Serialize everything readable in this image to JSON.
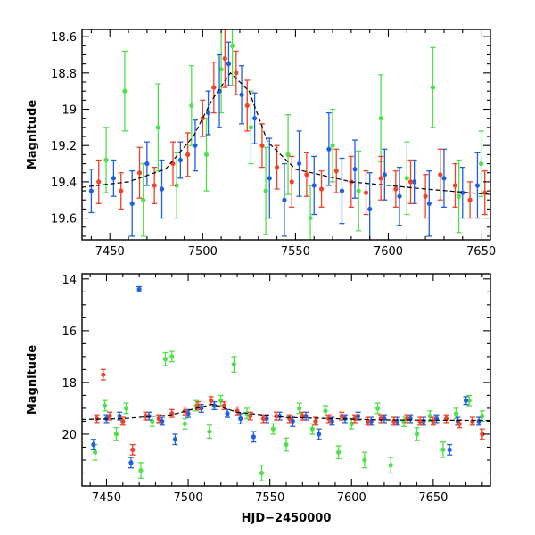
{
  "chart_data": [
    {
      "type": "scatter",
      "title": "",
      "xlabel": "",
      "ylabel": "Magnitude",
      "xlim": [
        7435,
        7655
      ],
      "ylim": [
        19.72,
        18.56
      ],
      "y_inverted": true,
      "xticks": [
        7450,
        7500,
        7550,
        7600,
        7650
      ],
      "yticks": [
        18.6,
        18.8,
        19,
        19.2,
        19.4,
        19.6
      ],
      "yticks_labels": [
        "18.6",
        "18.8",
        "19",
        "19.2",
        "19.4",
        "19.6"
      ],
      "grid": false,
      "legend": "none",
      "colors": {
        "blue": "#1f5fe0",
        "red": "#f0422a",
        "green": "#4fe04a",
        "fit": "#000000"
      },
      "fit_curve": {
        "x": [
          7435,
          7460,
          7480,
          7495,
          7505,
          7515,
          7525,
          7535,
          7550,
          7580,
          7620,
          7655
        ],
        "y": [
          19.43,
          19.4,
          19.33,
          19.15,
          18.95,
          18.8,
          18.9,
          19.18,
          19.33,
          19.4,
          19.44,
          19.47
        ]
      },
      "series": [
        {
          "color": "blue",
          "x": [
            7440,
            7452,
            7462,
            7470,
            7478,
            7488,
            7496,
            7503,
            7509,
            7514,
            7521,
            7528,
            7536,
            7544,
            7552,
            7560,
            7568,
            7575,
            7582,
            7590,
            7598,
            7606,
            7614,
            7622,
            7630,
            7640,
            7648
          ],
          "y": [
            19.45,
            19.38,
            19.52,
            19.3,
            19.44,
            19.28,
            19.2,
            19.02,
            18.9,
            18.75,
            18.92,
            19.05,
            19.38,
            19.5,
            19.3,
            19.42,
            19.22,
            19.45,
            19.33,
            19.55,
            19.36,
            19.48,
            19.4,
            19.52,
            19.38,
            19.46,
            19.42
          ],
          "err": [
            0.12,
            0.1,
            0.18,
            0.12,
            0.16,
            0.1,
            0.14,
            0.12,
            0.2,
            0.12,
            0.16,
            0.14,
            0.22,
            0.2,
            0.18,
            0.16,
            0.2,
            0.18,
            0.16,
            0.2,
            0.14,
            0.16,
            0.12,
            0.18,
            0.16,
            0.14,
            0.18
          ]
        },
        {
          "color": "red",
          "x": [
            7444,
            7456,
            7466,
            7474,
            7484,
            7492,
            7500,
            7506,
            7512,
            7518,
            7524,
            7532,
            7540,
            7548,
            7556,
            7564,
            7572,
            7580,
            7588,
            7596,
            7604,
            7612,
            7620,
            7628,
            7636,
            7644,
            7652
          ],
          "y": [
            19.4,
            19.45,
            19.35,
            19.42,
            19.3,
            19.25,
            19.05,
            18.88,
            18.72,
            18.8,
            18.98,
            19.2,
            19.32,
            19.4,
            19.36,
            19.44,
            19.34,
            19.4,
            19.46,
            19.38,
            19.44,
            19.4,
            19.48,
            19.36,
            19.42,
            19.5,
            19.46
          ],
          "err": [
            0.12,
            0.1,
            0.14,
            0.1,
            0.12,
            0.12,
            0.1,
            0.14,
            0.16,
            0.12,
            0.14,
            0.12,
            0.12,
            0.14,
            0.12,
            0.1,
            0.12,
            0.14,
            0.12,
            0.12,
            0.1,
            0.12,
            0.12,
            0.14,
            0.12,
            0.1,
            0.12
          ]
        },
        {
          "color": "green",
          "x": [
            7448,
            7458,
            7468,
            7476,
            7486,
            7494,
            7502,
            7510,
            7516,
            7526,
            7534,
            7546,
            7558,
            7570,
            7584,
            7596,
            7610,
            7624,
            7638,
            7650
          ],
          "y": [
            19.28,
            18.9,
            19.5,
            19.1,
            19.42,
            18.98,
            19.25,
            18.78,
            18.65,
            19.1,
            19.45,
            19.25,
            19.6,
            19.2,
            19.45,
            19.05,
            19.38,
            18.88,
            19.48,
            19.3
          ],
          "err": [
            0.18,
            0.22,
            0.2,
            0.24,
            0.18,
            0.22,
            0.2,
            0.24,
            0.22,
            0.2,
            0.24,
            0.22,
            0.18,
            0.2,
            0.22,
            0.24,
            0.2,
            0.22,
            0.2,
            0.18
          ]
        }
      ]
    },
    {
      "type": "scatter",
      "title": "",
      "xlabel": "HJD−2450000",
      "ylabel": "Magnitude",
      "xlim": [
        7435,
        7685
      ],
      "ylim": [
        22.0,
        13.8
      ],
      "y_inverted": true,
      "xticks": [
        7450,
        7500,
        7550,
        7600,
        7650
      ],
      "yticks": [
        14,
        16,
        18,
        20
      ],
      "yticks_labels": [
        "14",
        "16",
        "18",
        "20"
      ],
      "grid": false,
      "legend": "none",
      "colors": {
        "blue": "#1f5fe0",
        "red": "#f0422a",
        "green": "#4fe04a",
        "fit": "#000000"
      },
      "fit_curve": {
        "x": [
          7435,
          7460,
          7490,
          7505,
          7515,
          7530,
          7560,
          7620,
          7685
        ],
        "y": [
          19.43,
          19.4,
          19.25,
          19.0,
          18.85,
          19.15,
          19.35,
          19.45,
          19.47
        ]
      },
      "series": [
        {
          "color": "blue",
          "x": [
            7442,
            7450,
            7458,
            7465,
            7470,
            7476,
            7484,
            7492,
            7500,
            7508,
            7516,
            7524,
            7532,
            7540,
            7548,
            7556,
            7564,
            7572,
            7580,
            7588,
            7596,
            7604,
            7612,
            7620,
            7628,
            7636,
            7644,
            7652,
            7660,
            7665,
            7670,
            7678
          ],
          "y": [
            20.4,
            19.4,
            19.3,
            21.1,
            14.4,
            19.3,
            19.5,
            20.2,
            19.2,
            19.0,
            18.9,
            19.2,
            19.4,
            20.1,
            19.4,
            19.3,
            19.5,
            19.3,
            20.0,
            19.5,
            19.4,
            19.3,
            19.5,
            19.4,
            19.5,
            19.4,
            19.5,
            19.4,
            20.6,
            19.5,
            18.7,
            19.5
          ],
          "err": [
            0.2,
            0.15,
            0.15,
            0.2,
            0.1,
            0.15,
            0.15,
            0.2,
            0.15,
            0.15,
            0.15,
            0.15,
            0.2,
            0.2,
            0.15,
            0.15,
            0.2,
            0.15,
            0.2,
            0.15,
            0.15,
            0.15,
            0.15,
            0.15,
            0.15,
            0.15,
            0.15,
            0.15,
            0.2,
            0.15,
            0.15,
            0.15
          ]
        },
        {
          "color": "red",
          "x": [
            7444,
            7448,
            7452,
            7460,
            7466,
            7474,
            7482,
            7490,
            7498,
            7506,
            7514,
            7522,
            7530,
            7538,
            7546,
            7554,
            7562,
            7570,
            7578,
            7586,
            7594,
            7602,
            7610,
            7618,
            7626,
            7634,
            7642,
            7650,
            7658,
            7666,
            7674,
            7680
          ],
          "y": [
            19.4,
            17.7,
            19.3,
            19.5,
            20.6,
            19.3,
            19.4,
            19.2,
            19.1,
            18.9,
            18.7,
            18.9,
            19.1,
            19.3,
            19.4,
            19.3,
            19.4,
            19.3,
            19.5,
            19.4,
            19.3,
            19.4,
            19.5,
            19.4,
            19.5,
            19.4,
            19.5,
            19.5,
            19.4,
            19.6,
            19.5,
            20.0
          ],
          "err": [
            0.15,
            0.2,
            0.15,
            0.15,
            0.2,
            0.15,
            0.15,
            0.15,
            0.15,
            0.15,
            0.15,
            0.15,
            0.15,
            0.15,
            0.15,
            0.15,
            0.15,
            0.15,
            0.15,
            0.15,
            0.15,
            0.15,
            0.15,
            0.15,
            0.15,
            0.15,
            0.15,
            0.15,
            0.15,
            0.15,
            0.15,
            0.2
          ]
        },
        {
          "color": "green",
          "x": [
            7443,
            7449,
            7456,
            7462,
            7471,
            7478,
            7486,
            7490,
            7498,
            7505,
            7513,
            7520,
            7528,
            7536,
            7545,
            7552,
            7560,
            7568,
            7576,
            7584,
            7592,
            7600,
            7608,
            7616,
            7624,
            7632,
            7640,
            7648,
            7656,
            7664,
            7672,
            7680
          ],
          "y": [
            20.7,
            18.9,
            20.0,
            19.0,
            21.4,
            19.5,
            17.1,
            17.0,
            19.6,
            18.9,
            19.9,
            18.7,
            17.3,
            19.2,
            21.5,
            19.8,
            20.4,
            19.0,
            19.8,
            19.1,
            20.7,
            19.6,
            21.0,
            19.0,
            21.2,
            19.5,
            20.0,
            19.3,
            20.6,
            19.2,
            18.7,
            19.3
          ],
          "err": [
            0.3,
            0.2,
            0.25,
            0.2,
            0.3,
            0.2,
            0.25,
            0.2,
            0.2,
            0.2,
            0.25,
            0.2,
            0.3,
            0.2,
            0.3,
            0.2,
            0.25,
            0.2,
            0.2,
            0.2,
            0.25,
            0.2,
            0.3,
            0.2,
            0.3,
            0.2,
            0.25,
            0.2,
            0.3,
            0.2,
            0.2,
            0.2
          ]
        }
      ]
    }
  ]
}
